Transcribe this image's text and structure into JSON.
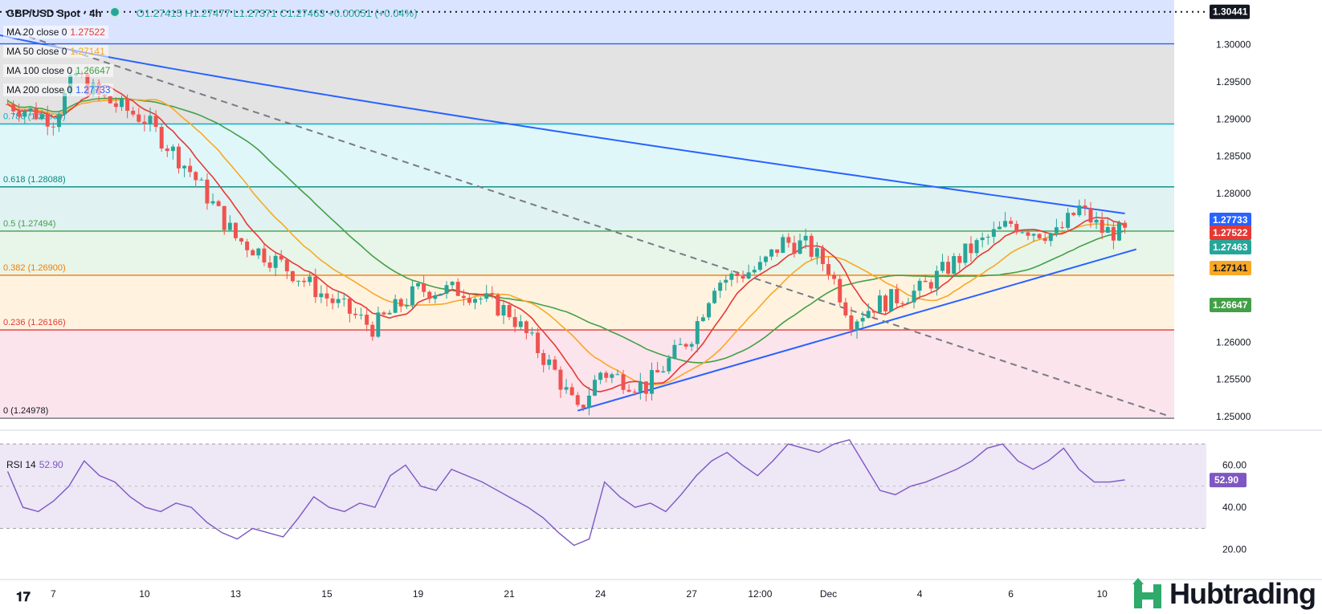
{
  "header": {
    "symbol": "GBP/USD Spot · 4h",
    "ohlc": "O1.27415 H1.27477 L1.27371 C1.27463 +0.00051 (+0.04%)"
  },
  "ma_legend": [
    {
      "label": "MA 20 close 0",
      "value": "1.27522",
      "color": "#e53935"
    },
    {
      "label": "MA 50 close 0",
      "value": "1.27141",
      "color": "#f9a825"
    },
    {
      "label": "MA 100 close 0",
      "value": "1.26647",
      "color": "#43a047"
    },
    {
      "label": "MA 200 close 0",
      "value": "1.27733",
      "color": "#2962ff"
    }
  ],
  "rsi_legend": {
    "label": "RSI 14",
    "value": "52.90"
  },
  "colors": {
    "up": "#26a69a",
    "down": "#ef5350",
    "ma20": "#e53935",
    "ma50": "#f9a825",
    "ma100": "#43a047",
    "ma200": "#2962ff",
    "rsi": "#7e57c2",
    "trendline": "#2962ff",
    "dashed": "#787b86"
  },
  "chart_data": {
    "type": "candlestick",
    "title": "GBP/USD Spot · 4h",
    "price_axis": {
      "range": [
        1.2485,
        1.306
      ],
      "ticks": [
        "1.30000",
        "1.29500",
        "1.29000",
        "1.28500",
        "1.28000",
        "1.27500",
        "1.27000",
        "1.26500",
        "1.26000",
        "1.25500",
        "1.25000"
      ],
      "tick_values": [
        1.3,
        1.295,
        1.29,
        1.285,
        1.28,
        1.275,
        1.27,
        1.265,
        1.26,
        1.255,
        1.25
      ]
    },
    "time_axis": {
      "labels": [
        "7",
        "10",
        "13",
        "15",
        "19",
        "21",
        "24",
        "27",
        "12:00",
        "Dec",
        "4",
        "6",
        "10"
      ],
      "label_bars": [
        8,
        24,
        40,
        56,
        72,
        88,
        104,
        120,
        132,
        144,
        160,
        176,
        192
      ]
    },
    "fibonacci": [
      {
        "level": "0",
        "price": 1.24978,
        "label": "0 (1.24978)",
        "color": "#787b86",
        "zone": "#fce4ec"
      },
      {
        "level": "0.236",
        "price": 1.26166,
        "label": "0.236 (1.26166)",
        "color": "#e53935",
        "zone": "#fce4ec"
      },
      {
        "level": "0.382",
        "price": 1.269,
        "label": "0.382 (1.26900)",
        "color": "#f57c00",
        "zone": "#fff3e0"
      },
      {
        "level": "0.5",
        "price": 1.27494,
        "label": "0.5 (1.27494)",
        "color": "#43a047",
        "zone": "#e8f5e9"
      },
      {
        "level": "0.618",
        "price": 1.28088,
        "label": "0.618 (1.28088)",
        "color": "#00897b",
        "zone": "#e0f2f1"
      },
      {
        "level": "0.786",
        "price": 1.28934,
        "label": "0.786 (1.28934)",
        "color": "#00acc1",
        "zone": "#e0f7fa"
      },
      {
        "level": "1",
        "price": 1.30011,
        "label": "1 (1.30011)",
        "color": "#2962ff",
        "zone": "#e3e3e3"
      }
    ],
    "dotted_level": {
      "price": 1.30441,
      "label": "1.30441"
    },
    "price_labels": [
      {
        "price": 1.27733,
        "label": "1.27733",
        "color": "#2962ff"
      },
      {
        "price": 1.27522,
        "label": "1.27522",
        "color": "#e53935"
      },
      {
        "price": 1.27463,
        "label": "1.27463",
        "color": "#26a69a"
      },
      {
        "price": 1.27141,
        "label": "1.27141",
        "color": "#f9a825"
      },
      {
        "price": 1.26647,
        "label": "1.26647",
        "color": "#43a047"
      }
    ],
    "key_closes": [
      {
        "bar": 0,
        "close": 1.292
      },
      {
        "bar": 8,
        "close": 1.29
      },
      {
        "bar": 12,
        "close": 1.296
      },
      {
        "bar": 16,
        "close": 1.293
      },
      {
        "bar": 24,
        "close": 1.29
      },
      {
        "bar": 32,
        "close": 1.283
      },
      {
        "bar": 40,
        "close": 1.274
      },
      {
        "bar": 48,
        "close": 1.2705
      },
      {
        "bar": 56,
        "close": 1.266
      },
      {
        "bar": 64,
        "close": 1.262
      },
      {
        "bar": 72,
        "close": 1.267
      },
      {
        "bar": 80,
        "close": 1.267
      },
      {
        "bar": 88,
        "close": 1.264
      },
      {
        "bar": 96,
        "close": 1.256
      },
      {
        "bar": 100,
        "close": 1.2505
      },
      {
        "bar": 104,
        "close": 1.256
      },
      {
        "bar": 112,
        "close": 1.254
      },
      {
        "bar": 120,
        "close": 1.261
      },
      {
        "bar": 124,
        "close": 1.268
      },
      {
        "bar": 132,
        "close": 1.27
      },
      {
        "bar": 136,
        "close": 1.2735
      },
      {
        "bar": 140,
        "close": 1.273
      },
      {
        "bar": 144,
        "close": 1.27
      },
      {
        "bar": 148,
        "close": 1.263
      },
      {
        "bar": 152,
        "close": 1.265
      },
      {
        "bar": 160,
        "close": 1.267
      },
      {
        "bar": 168,
        "close": 1.272
      },
      {
        "bar": 176,
        "close": 1.276
      },
      {
        "bar": 180,
        "close": 1.275
      },
      {
        "bar": 184,
        "close": 1.2745
      },
      {
        "bar": 188,
        "close": 1.278
      },
      {
        "bar": 192,
        "close": 1.275
      },
      {
        "bar": 196,
        "close": 1.2746
      }
    ],
    "rsi": {
      "range": [
        18,
        75
      ],
      "ticks": [
        "60.00",
        "40.00",
        "20.00"
      ],
      "tick_values": [
        60,
        40,
        20
      ],
      "bands": [
        30,
        70
      ],
      "last": 52.9,
      "values": [
        57,
        40,
        38,
        43,
        50,
        62,
        55,
        52,
        45,
        40,
        38,
        42,
        40,
        33,
        28,
        25,
        30,
        28,
        26,
        35,
        45,
        40,
        38,
        42,
        40,
        55,
        60,
        50,
        48,
        58,
        55,
        52,
        48,
        44,
        40,
        35,
        28,
        22,
        25,
        52,
        45,
        40,
        42,
        38,
        46,
        55,
        62,
        66,
        60,
        55,
        62,
        70,
        68,
        66,
        70,
        72,
        60,
        48,
        46,
        50,
        52,
        55,
        58,
        62,
        68,
        70,
        62,
        58,
        62,
        68,
        58,
        52,
        52,
        53
      ]
    },
    "trendline": {
      "from": {
        "bar": 100,
        "price": 1.2508
      },
      "to": {
        "bar": 198,
        "price": 1.2725
      }
    },
    "dashed_trendline": {
      "from": {
        "bar": 0,
        "price": 1.302
      },
      "to": {
        "bar": 204,
        "price": 1.25
      }
    }
  },
  "watermark": {
    "brand": "Hubtrading"
  }
}
